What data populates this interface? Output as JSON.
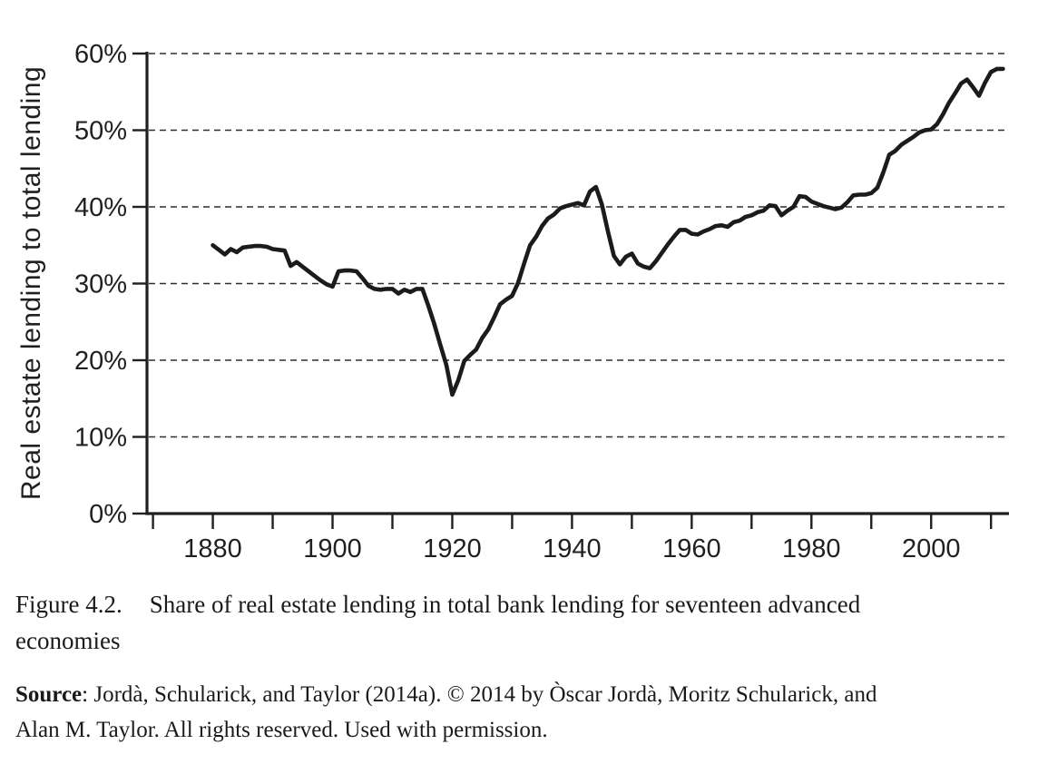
{
  "figure": {
    "caption_label": "Figure 4.2.",
    "caption_line1": "Share of real estate lending in total bank lending for seventeen advanced",
    "caption_line2": "economies",
    "source_label": "Source",
    "source_line1": ": Jordà, Schularick, and Taylor (2014a). © 2014 by Òscar Jordà, Moritz Schularick, and",
    "source_line2": "Alan M. Taylor. All rights reserved. Used with permission."
  },
  "chart_data": {
    "type": "line",
    "title": "",
    "xlabel": "",
    "ylabel": "Real estate lending to total lending",
    "xlim": [
      1869,
      2013
    ],
    "ylim": [
      0,
      60
    ],
    "grid": "horizontal-dashed",
    "legend": "none",
    "line_color": "#1c1a1a",
    "y_ticks": [
      0,
      10,
      20,
      30,
      40,
      50,
      60
    ],
    "y_tick_labels": [
      "0%",
      "10%",
      "20%",
      "30%",
      "40%",
      "50%",
      "60%"
    ],
    "x_ticks": [
      1870,
      1880,
      1890,
      1900,
      1910,
      1920,
      1930,
      1940,
      1950,
      1960,
      1970,
      1980,
      1990,
      2000,
      2010
    ],
    "x_label_years": [
      1880,
      1900,
      1920,
      1940,
      1960,
      1980,
      2000
    ],
    "series": [
      {
        "name": "Real estate lending to total lending (17 advanced economies)",
        "x": [
          1880,
          1881,
          1882,
          1883,
          1884,
          1885,
          1886,
          1887,
          1888,
          1889,
          1890,
          1891,
          1892,
          1893,
          1894,
          1895,
          1896,
          1897,
          1898,
          1899,
          1900,
          1901,
          1902,
          1903,
          1904,
          1905,
          1906,
          1907,
          1908,
          1909,
          1910,
          1911,
          1912,
          1913,
          1914,
          1915,
          1916,
          1917,
          1918,
          1919,
          1920,
          1921,
          1922,
          1923,
          1924,
          1925,
          1926,
          1927,
          1928,
          1929,
          1930,
          1931,
          1932,
          1933,
          1934,
          1935,
          1936,
          1937,
          1938,
          1939,
          1940,
          1941,
          1942,
          1943,
          1944,
          1945,
          1946,
          1947,
          1948,
          1949,
          1950,
          1951,
          1952,
          1953,
          1954,
          1955,
          1956,
          1957,
          1958,
          1959,
          1960,
          1961,
          1962,
          1963,
          1964,
          1965,
          1966,
          1967,
          1968,
          1969,
          1970,
          1971,
          1972,
          1973,
          1974,
          1975,
          1976,
          1977,
          1978,
          1979,
          1980,
          1981,
          1982,
          1983,
          1984,
          1985,
          1986,
          1987,
          1988,
          1989,
          1990,
          1991,
          1992,
          1993,
          1994,
          1995,
          1996,
          1997,
          1998,
          1999,
          2000,
          2001,
          2002,
          2003,
          2004,
          2005,
          2006,
          2007,
          2008,
          2009,
          2010,
          2011,
          2012
        ],
        "y": [
          35.0,
          34.4,
          33.8,
          34.5,
          34.1,
          34.7,
          34.8,
          34.9,
          34.9,
          34.8,
          34.5,
          34.4,
          34.3,
          32.3,
          32.8,
          32.2,
          31.6,
          31.0,
          30.4,
          29.9,
          29.6,
          31.6,
          31.7,
          31.7,
          31.6,
          30.7,
          29.7,
          29.3,
          29.2,
          29.3,
          29.3,
          28.7,
          29.2,
          28.9,
          29.3,
          29.3,
          27.1,
          24.7,
          22.0,
          19.4,
          15.5,
          17.4,
          19.9,
          20.7,
          21.4,
          22.9,
          24.0,
          25.6,
          27.3,
          27.9,
          28.4,
          30.1,
          32.6,
          35.0,
          36.1,
          37.5,
          38.5,
          39.0,
          39.8,
          40.1,
          40.3,
          40.5,
          40.2,
          42.0,
          42.6,
          40.3,
          36.8,
          33.6,
          32.5,
          33.5,
          33.9,
          32.6,
          32.2,
          32.0,
          32.9,
          34.0,
          35.1,
          36.1,
          37.0,
          37.0,
          36.5,
          36.4,
          36.8,
          37.1,
          37.5,
          37.6,
          37.4,
          38.0,
          38.2,
          38.7,
          38.9,
          39.3,
          39.5,
          40.2,
          40.1,
          38.9,
          39.5,
          40.0,
          41.4,
          41.3,
          40.7,
          40.4,
          40.1,
          39.9,
          39.7,
          39.9,
          40.6,
          41.5,
          41.6,
          41.6,
          41.8,
          42.5,
          44.5,
          46.8,
          47.3,
          48.1,
          48.6,
          49.1,
          49.7,
          50.0,
          50.1,
          50.8,
          52.1,
          53.6,
          54.8,
          56.1,
          56.6,
          55.6,
          54.5,
          56.2,
          57.6,
          58.0,
          58.0
        ]
      }
    ]
  }
}
